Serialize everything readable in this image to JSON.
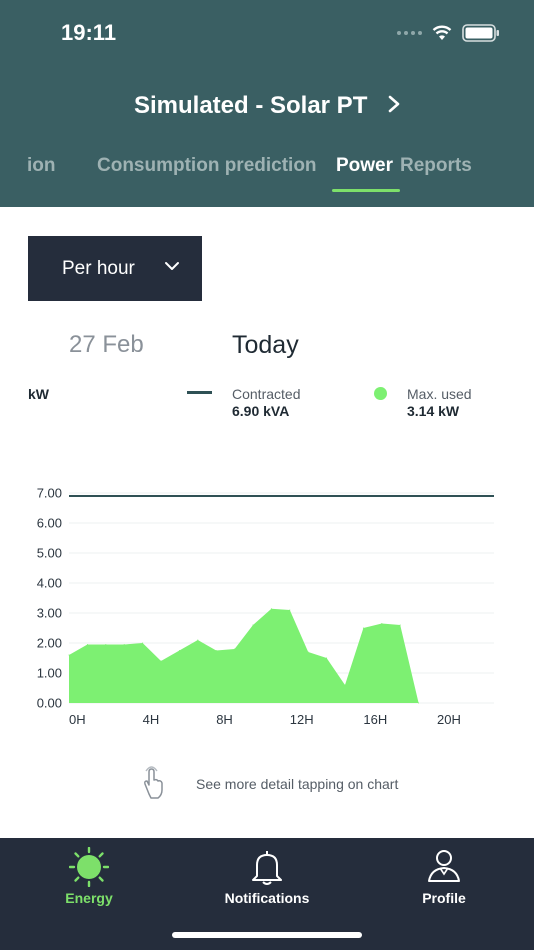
{
  "status_bar": {
    "time": "19:11"
  },
  "header": {
    "title": "Simulated - Solar PT"
  },
  "tabs": [
    {
      "label": "ion",
      "active": false
    },
    {
      "label": "Consumption prediction",
      "active": false
    },
    {
      "label": "Power",
      "active": true
    },
    {
      "label": "Reports",
      "active": false
    }
  ],
  "period_dropdown": {
    "value": "Per hour"
  },
  "dates": {
    "previous": "27 Feb",
    "current": "Today"
  },
  "legend": {
    "unit": "kW",
    "contracted_label": "Contracted",
    "contracted_value": "6.90 kVA",
    "max_label": "Max. used",
    "max_value": "3.14 kW"
  },
  "colors": {
    "header": "#3a5f63",
    "accent": "#7de06a",
    "fill": "#7df072",
    "contracted_line": "#2f5155",
    "nav": "#252d3c"
  },
  "chart_data": {
    "type": "area",
    "ylim": [
      0,
      7
    ],
    "y_ticks": [
      "0.00",
      "1.00",
      "2.00",
      "3.00",
      "4.00",
      "5.00",
      "6.00",
      "7.00"
    ],
    "x_ticks": [
      "0H",
      "4H",
      "8H",
      "12H",
      "16H",
      "20H"
    ],
    "contracted": 6.9,
    "x": [
      0,
      1,
      2,
      3,
      4,
      5,
      6,
      7,
      8,
      9,
      10,
      11,
      12,
      13,
      14,
      15,
      16,
      17,
      18,
      19
    ],
    "values": [
      1.6,
      1.95,
      1.95,
      1.95,
      2.0,
      1.4,
      1.75,
      2.1,
      1.75,
      1.8,
      2.6,
      3.14,
      3.1,
      1.7,
      1.5,
      0.6,
      2.5,
      2.65,
      2.6,
      0.0
    ]
  },
  "hint": {
    "text": "See more detail tapping on chart"
  },
  "bottom_nav": [
    {
      "label": "Energy",
      "icon": "sun-icon",
      "active": true
    },
    {
      "label": "Notifications",
      "icon": "bell-icon",
      "active": false
    },
    {
      "label": "Profile",
      "icon": "person-icon",
      "active": false
    }
  ]
}
